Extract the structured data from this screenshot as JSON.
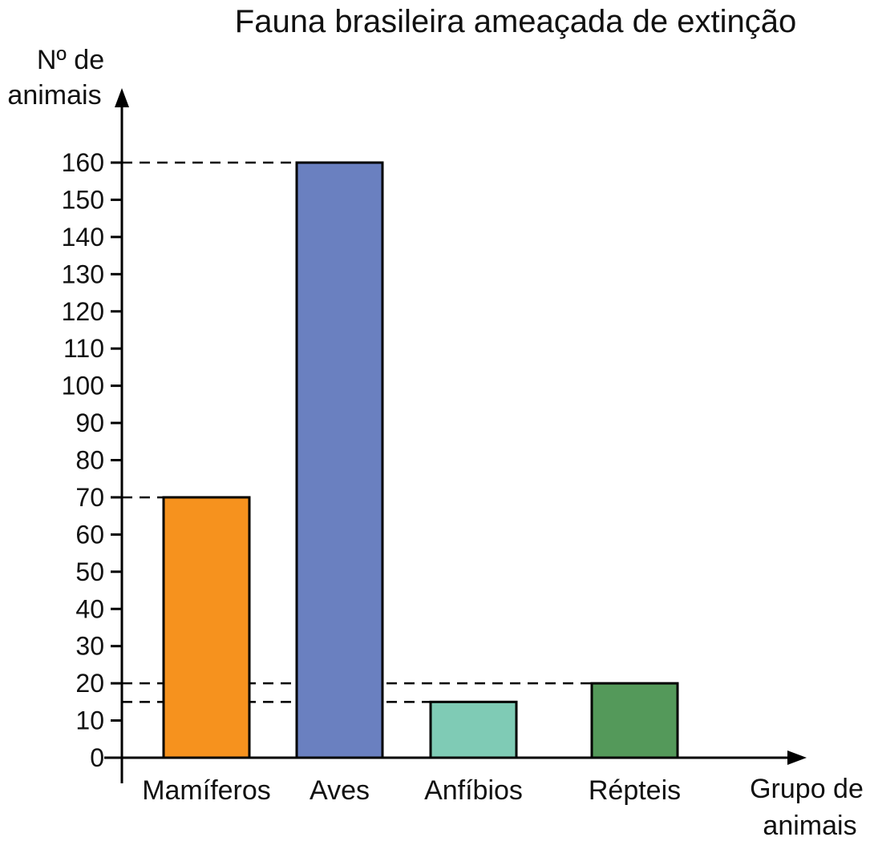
{
  "chart_data": {
    "type": "bar",
    "title": "Fauna brasileira ameaçada de extinção",
    "ylabel": [
      "Nº de",
      "animais"
    ],
    "xlabel": [
      "Grupo de",
      "animais"
    ],
    "categories": [
      "Mamíferos",
      "Aves",
      "Anfíbios",
      "Répteis"
    ],
    "values": [
      70,
      160,
      15,
      20
    ],
    "colors": [
      "#f6921e",
      "#6a80c0",
      "#7fcbb5",
      "#54995a"
    ],
    "ylim": [
      0,
      160
    ],
    "yticks": [
      0,
      10,
      20,
      30,
      40,
      50,
      60,
      70,
      80,
      90,
      100,
      110,
      120,
      130,
      140,
      150,
      160
    ],
    "grid": false,
    "reference_lines": [
      160,
      70,
      20,
      15
    ]
  }
}
